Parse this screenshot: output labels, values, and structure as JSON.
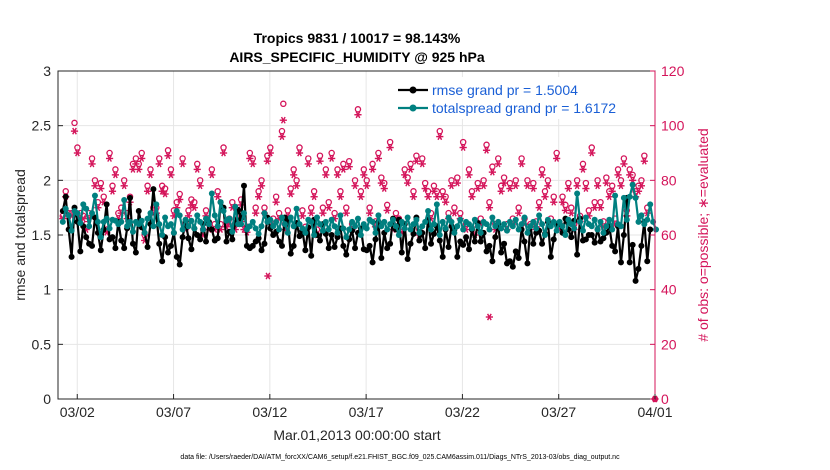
{
  "chart_data": {
    "type": "line",
    "title_line1": "Tropics 9831 / 10017 = 98.143%",
    "title_line2": "AIRS_SPECIFIC_HUMIDITY @ 925 hPa",
    "ylabel": "rmse and totalspread",
    "ylabel_right": "# of obs: o=possible; ∗=evaluated",
    "xlabel": "Mar.01,2013 00:00:00 start",
    "footnote": "data file: /Users/raeder/DAI/ATM_forcXX/CAM6_setup/f.e21.FHIST_BGC.f09_025.CAM6assim.011/Diags_NTrS_2013-03/obs_diag_output.nc",
    "x_tick_labels": [
      "03/02",
      "03/07",
      "03/12",
      "03/17",
      "03/22",
      "03/27",
      "04/01"
    ],
    "x_tick_days": [
      1,
      6,
      11,
      16,
      21,
      26,
      31
    ],
    "y_tick_labels": [
      "0",
      "0.5",
      "1",
      "1.5",
      "2",
      "2.5",
      "3"
    ],
    "y_tick_values": [
      0,
      0.5,
      1,
      1.5,
      2,
      2.5,
      3
    ],
    "ylim": [
      0,
      3
    ],
    "y_right_tick_labels": [
      "0",
      "20",
      "40",
      "60",
      "80",
      "100",
      "120"
    ],
    "y_right_tick_values": [
      0,
      20,
      40,
      60,
      80,
      100,
      120
    ],
    "ylim_right": [
      0,
      120
    ],
    "xlim_days": [
      0,
      31
    ],
    "grid": true,
    "legend_placement": "top-right",
    "colors": {
      "rmse": "#000000",
      "totalspread": "#008080",
      "obs": "#d4145a",
      "legend_text": "#1a5fd6",
      "grid": "#e6e6e6"
    },
    "series": [
      {
        "name": "rmse grand pr = 1.5004",
        "values": [
          1.72,
          1.85,
          1.55,
          1.3,
          1.75,
          1.62,
          1.35,
          1.58,
          1.48,
          1.42,
          1.4,
          1.66,
          1.52,
          1.36,
          1.55,
          1.78,
          1.46,
          1.48,
          1.38,
          1.62,
          1.45,
          1.38,
          1.56,
          1.84,
          1.42,
          1.34,
          1.72,
          1.57,
          1.52,
          1.39,
          1.6,
          1.92,
          1.68,
          1.42,
          1.26,
          1.48,
          1.34,
          1.4,
          1.52,
          1.3,
          1.23,
          1.48,
          1.62,
          1.47,
          1.37,
          1.56,
          1.5,
          1.46,
          1.6,
          1.44,
          1.62,
          1.55,
          1.45,
          1.47,
          1.8,
          1.75,
          1.44,
          1.53,
          1.46,
          1.61,
          1.73,
          1.65,
          1.95,
          1.4,
          1.38,
          1.4,
          1.44,
          1.47,
          1.36,
          1.42,
          1.66,
          1.56,
          1.5,
          1.53,
          1.44,
          1.4,
          1.66,
          1.64,
          1.33,
          1.4,
          1.61,
          1.49,
          1.54,
          1.36,
          1.57,
          1.31,
          1.64,
          1.5,
          1.45,
          1.6,
          1.51,
          1.38,
          1.5,
          1.39,
          1.48,
          1.56,
          1.4,
          1.32,
          1.46,
          1.54,
          1.38,
          1.52,
          1.56,
          1.37,
          1.36,
          1.4,
          1.25,
          1.46,
          1.62,
          1.29,
          1.52,
          1.38,
          1.42,
          1.65,
          1.55,
          1.64,
          1.34,
          1.6,
          1.28,
          1.42,
          1.51,
          1.66,
          1.45,
          1.52,
          1.38,
          1.64,
          1.42,
          1.51,
          1.58,
          1.45,
          1.3,
          1.55,
          1.39,
          1.58,
          1.55,
          1.3,
          1.44,
          1.41,
          1.48,
          1.37,
          1.55,
          1.44,
          1.61,
          1.44,
          1.52,
          1.35,
          1.4,
          1.26,
          1.48,
          1.6,
          1.34,
          1.42,
          1.24,
          1.26,
          1.21,
          1.35,
          1.29,
          1.55,
          1.44,
          1.24,
          1.58,
          1.42,
          1.52,
          1.54,
          1.42,
          1.51,
          1.62,
          1.3,
          1.46,
          1.6,
          1.6,
          1.52,
          1.65,
          1.55,
          1.48,
          1.63,
          1.32,
          1.65,
          1.45,
          1.46,
          1.5,
          1.5,
          1.43,
          1.55,
          1.44,
          1.47,
          1.52,
          1.58,
          1.4,
          1.35,
          1.58,
          1.25,
          1.5,
          1.84,
          1.25,
          1.41,
          1.08,
          1.19,
          1.4,
          1.62,
          1.26,
          1.55
        ]
      },
      {
        "name": "totalspread grand pr = 1.6172",
        "values": [
          1.62,
          1.74,
          1.68,
          1.54,
          1.72,
          1.7,
          1.61,
          1.78,
          1.74,
          1.58,
          1.7,
          1.86,
          1.62,
          1.48,
          1.62,
          1.65,
          1.56,
          1.64,
          1.63,
          1.6,
          1.62,
          1.82,
          1.58,
          1.62,
          1.53,
          1.62,
          1.6,
          1.63,
          1.52,
          1.65,
          1.7,
          1.58,
          1.78,
          1.6,
          1.5,
          1.66,
          1.58,
          1.6,
          1.52,
          1.72,
          1.68,
          1.55,
          1.64,
          1.58,
          1.63,
          1.56,
          1.68,
          1.62,
          1.55,
          1.65,
          1.6,
          1.88,
          1.68,
          1.58,
          1.8,
          1.72,
          1.63,
          1.65,
          1.53,
          1.76,
          1.6,
          1.6,
          1.7,
          1.55,
          1.58,
          1.62,
          1.56,
          1.51,
          1.58,
          1.7,
          1.62,
          1.64,
          1.58,
          1.62,
          1.55,
          1.66,
          1.6,
          1.52,
          1.66,
          1.58,
          1.74,
          1.6,
          1.56,
          1.52,
          1.64,
          1.62,
          1.5,
          1.66,
          1.6,
          1.54,
          1.62,
          1.55,
          1.64,
          1.58,
          1.52,
          1.68,
          1.56,
          1.48,
          1.55,
          1.62,
          1.58,
          1.65,
          1.5,
          1.6,
          1.56,
          1.64,
          1.62,
          1.52,
          1.68,
          1.58,
          1.62,
          1.55,
          1.6,
          1.64,
          1.58,
          1.5,
          1.62,
          1.56,
          1.66,
          1.55,
          1.6,
          1.64,
          1.52,
          1.58,
          1.62,
          1.72,
          1.55,
          1.6,
          1.78,
          1.5,
          1.62,
          1.56,
          1.66,
          1.62,
          1.52,
          1.58,
          1.64,
          1.55,
          1.62,
          1.6,
          1.56,
          1.64,
          1.58,
          1.52,
          1.62,
          1.6,
          1.55,
          1.66,
          1.58,
          1.62,
          1.56,
          1.6,
          1.54,
          1.62,
          1.58,
          1.64,
          1.55,
          1.6,
          1.66,
          1.52,
          1.58,
          1.62,
          1.56,
          1.68,
          1.6,
          1.5,
          1.64,
          1.58,
          1.62,
          1.54,
          1.62,
          1.58,
          1.5,
          1.64,
          1.6,
          1.56,
          1.88,
          1.62,
          1.54,
          1.66,
          1.6,
          1.58,
          1.64,
          1.55,
          1.62,
          1.52,
          1.58,
          1.64,
          1.55,
          1.86,
          1.6,
          1.58,
          1.84,
          1.64,
          1.85,
          1.96,
          1.84,
          1.62,
          1.68,
          1.6,
          1.64,
          1.78,
          1.62,
          1.55
        ]
      },
      {
        "name": "obs possible (o)",
        "values": [
          67,
          76,
          68,
          68,
          101,
          92,
          68,
          67,
          64,
          68,
          88,
          80,
          72,
          79,
          74,
          62,
          90,
          78,
          84,
          68,
          70,
          80,
          68,
          74,
          86,
          88,
          86,
          90,
          60,
          78,
          84,
          70,
          70,
          88,
          78,
          77,
          91,
          84,
          69,
          72,
          75,
          88,
          64,
          69,
          73,
          72,
          86,
          80,
          62,
          69,
          64,
          84,
          64,
          76,
          64,
          92,
          65,
          66,
          72,
          64,
          66,
          73,
          64,
          63,
          90,
          88,
          70,
          76,
          80,
          70,
          89,
          92,
          66,
          74,
          68,
          98,
          64,
          69,
          77,
          84,
          80,
          92,
          69,
          63,
          88,
          70,
          76,
          62,
          89,
          70,
          84,
          72,
          90,
          68,
          84,
          76,
          86,
          70,
          87,
          64,
          80,
          106,
          76,
          84,
          80,
          70,
          86,
          65,
          90,
          81,
          79,
          71,
          94,
          64,
          68,
          66,
          63,
          84,
          81,
          86,
          76,
          89,
          62,
          88,
          79,
          76,
          68,
          78,
          76,
          98,
          76,
          74,
          68,
          80,
          70,
          81,
          68,
          94,
          64,
          84,
          76,
          62,
          79,
          66,
          80,
          93,
          72,
          85,
          64,
          88,
          78,
          81,
          64,
          79,
          66,
          80,
          70,
          88,
          66,
          80,
          64,
          79,
          65,
          72,
          84,
          76,
          80,
          66,
          74,
          90,
          64,
          74,
          71,
          79,
          70,
          64,
          80,
          67,
          86,
          79,
          69,
          92,
          72,
          80,
          72,
          65,
          81,
          76,
          78,
          66,
          84,
          80,
          88,
          69,
          84,
          82,
          76,
          78,
          80,
          89,
          70
        ]
      },
      {
        "name": "obs evaluated (*)",
        "values": [
          66,
          74,
          67,
          67,
          98,
          90,
          66,
          66,
          62,
          66,
          86,
          78,
          70,
          77,
          72,
          61,
          88,
          76,
          82,
          66,
          68,
          78,
          66,
          72,
          84,
          86,
          84,
          88,
          58,
          76,
          82,
          68,
          68,
          86,
          76,
          75,
          89,
          82,
          67,
          70,
          73,
          86,
          62,
          67,
          71,
          70,
          84,
          78,
          60,
          67,
          62,
          82,
          62,
          74,
          62,
          90,
          63,
          64,
          70,
          62,
          64,
          71,
          62,
          61,
          88,
          86,
          68,
          74,
          78,
          68,
          87,
          90,
          64,
          72,
          66,
          96,
          62,
          67,
          75,
          82,
          78,
          90,
          67,
          61,
          86,
          68,
          74,
          60,
          87,
          68,
          82,
          70,
          88,
          66,
          82,
          74,
          84,
          68,
          85,
          62,
          78,
          104,
          74,
          82,
          78,
          68,
          84,
          63,
          88,
          79,
          77,
          69,
          92,
          62,
          66,
          64,
          61,
          82,
          79,
          84,
          74,
          87,
          60,
          86,
          77,
          74,
          66,
          76,
          74,
          96,
          74,
          72,
          66,
          78,
          68,
          79,
          66,
          92,
          62,
          82,
          74,
          60,
          77,
          64,
          78,
          91,
          70,
          83,
          62,
          86,
          76,
          79,
          62,
          77,
          64,
          78,
          68,
          86,
          64,
          78,
          62,
          77,
          63,
          70,
          82,
          74,
          78,
          64,
          72,
          88,
          62,
          72,
          69,
          77,
          68,
          62,
          78,
          65,
          84,
          77,
          67,
          90,
          70,
          78,
          70,
          63,
          79,
          74,
          76,
          64,
          82,
          78,
          86,
          67,
          82,
          80,
          74,
          76,
          78,
          87,
          68
        ]
      }
    ],
    "outlier_points": [
      {
        "series": "obs evaluated (*)",
        "day": 10.9,
        "value": 45
      },
      {
        "series": "obs evaluated (*)",
        "day": 22.4,
        "value": 30
      },
      {
        "series": "obs possible (o)",
        "day": 31.0,
        "value": 0
      },
      {
        "series": "obs evaluated (*)",
        "day": 31.0,
        "value": 0
      },
      {
        "series": "obs possible (o)",
        "day": 11.7,
        "value": 108
      },
      {
        "series": "obs evaluated (*)",
        "day": 11.7,
        "value": 102
      },
      {
        "series": "obs evaluated (*)",
        "day": 28.5,
        "value": 110
      }
    ]
  }
}
